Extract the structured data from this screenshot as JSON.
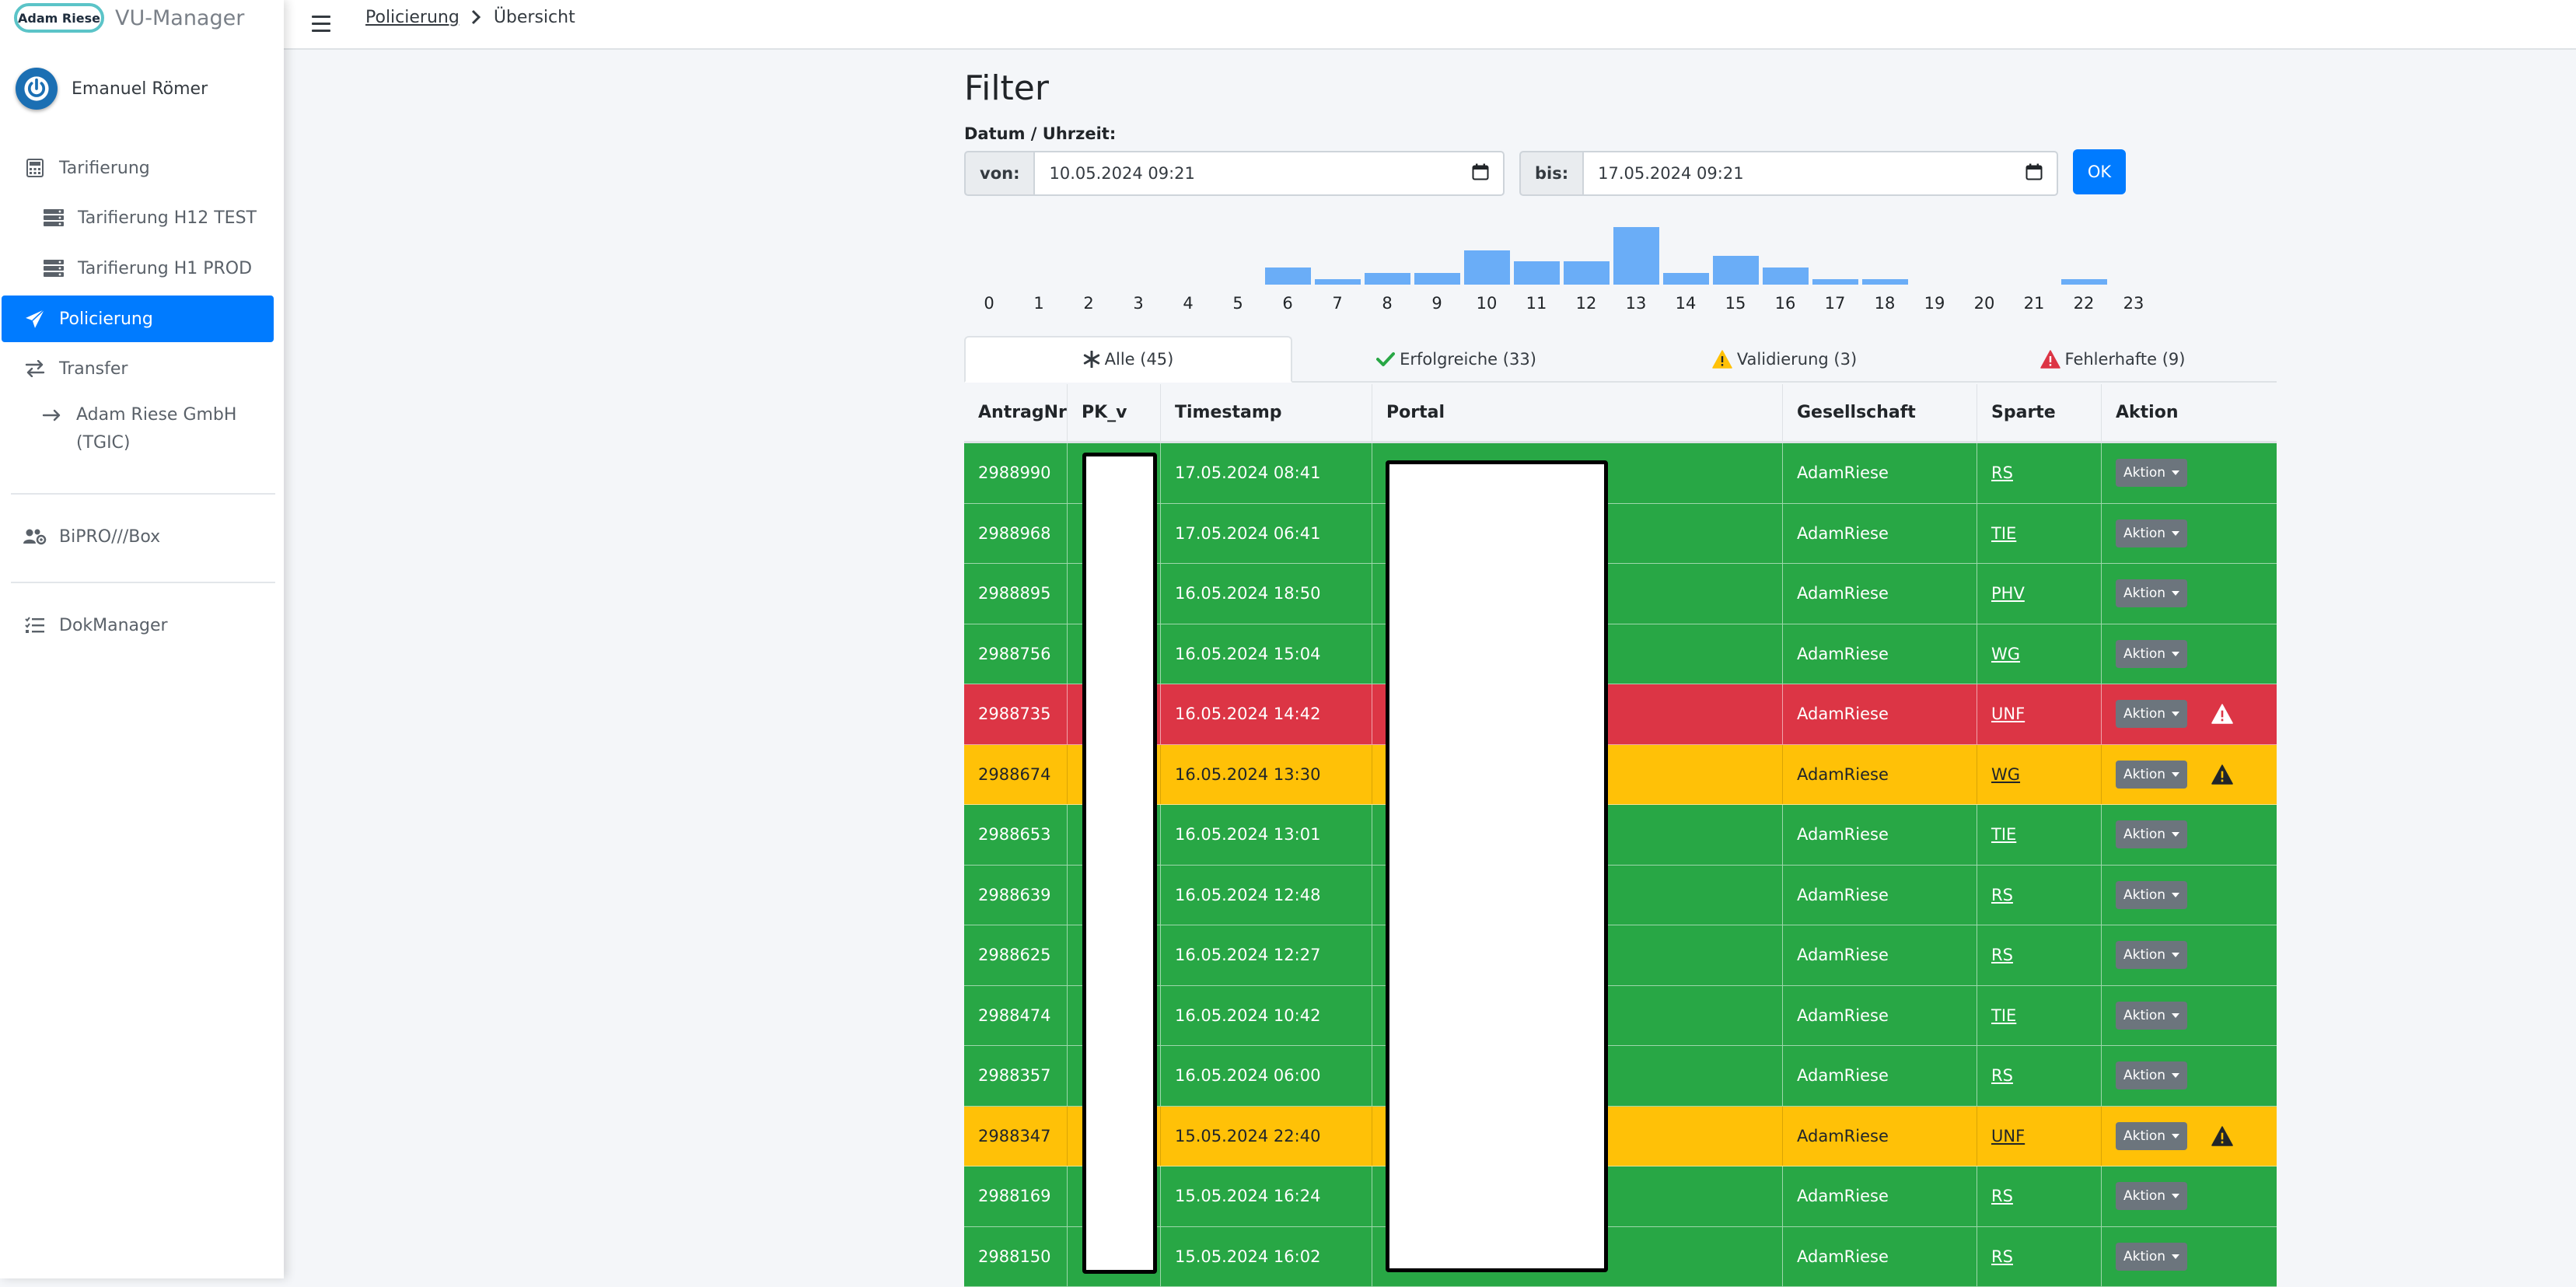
{
  "brand": {
    "logo_text": "Adam Riese",
    "app_name": "VU-Manager"
  },
  "user": {
    "name": "Emanuel Römer"
  },
  "sidebar": {
    "items": [
      {
        "label": "Tarifierung",
        "icon": "calculator-icon"
      },
      {
        "label": "Tarifierung H12 TEST",
        "icon": "server-icon"
      },
      {
        "label": "Tarifierung H1 PROD",
        "icon": "server-icon"
      },
      {
        "label": "Policierung",
        "icon": "paper-plane-icon",
        "active": true
      },
      {
        "label": "Transfer",
        "icon": "exchange-icon"
      },
      {
        "label": "Adam Riese GmbH (TGIC)",
        "icon": "arrow-right-icon"
      },
      {
        "label": "BiPRO///Box",
        "icon": "users-cog-icon"
      },
      {
        "label": "DokManager",
        "icon": "tasks-icon"
      }
    ]
  },
  "breadcrumb": {
    "parent": "Policierung",
    "current": "Übersicht"
  },
  "filter": {
    "title": "Filter",
    "datetime_label": "Datum / Uhrzeit:",
    "from_label": "von:",
    "from_value": "10.05.2024 09:21",
    "to_label": "bis:",
    "to_value": "17.05.2024 09:21",
    "ok_label": "OK"
  },
  "histogram": {
    "hours": [
      "0",
      "1",
      "2",
      "3",
      "4",
      "5",
      "6",
      "7",
      "8",
      "9",
      "10",
      "11",
      "12",
      "13",
      "14",
      "15",
      "16",
      "17",
      "18",
      "19",
      "20",
      "21",
      "22",
      "23"
    ],
    "counts": [
      0,
      0,
      0,
      0,
      0,
      0,
      3,
      1,
      2,
      2,
      6,
      4,
      4,
      10,
      2,
      5,
      3,
      1,
      1,
      0,
      0,
      0,
      1,
      0
    ],
    "bar_color": "#6aadf7"
  },
  "tabs": [
    {
      "label": "Alle (45)",
      "icon": "asterisk-icon",
      "active": true
    },
    {
      "label": "Erfolgreiche (33)",
      "icon": "check-icon",
      "color": "#28a745"
    },
    {
      "label": "Validierung (3)",
      "icon": "warning-icon",
      "color": "#ffc107"
    },
    {
      "label": "Fehlerhafte (9)",
      "icon": "warning-icon",
      "color": "#dc3545"
    }
  ],
  "table": {
    "columns": [
      "AntragNr",
      "PK_v",
      "Timestamp",
      "Portal",
      "Gesellschaft",
      "Sparte",
      "Aktion"
    ],
    "action_label": "Aktion",
    "rows": [
      {
        "antrag": "2988990",
        "ts": "17.05.2024 08:41",
        "ges": "AdamRiese",
        "sparte": "RS",
        "status": "green"
      },
      {
        "antrag": "2988968",
        "ts": "17.05.2024 06:41",
        "ges": "AdamRiese",
        "sparte": "TIE",
        "status": "green"
      },
      {
        "antrag": "2988895",
        "ts": "16.05.2024 18:50",
        "ges": "AdamRiese",
        "sparte": "PHV",
        "status": "green"
      },
      {
        "antrag": "2988756",
        "ts": "16.05.2024 15:04",
        "ges": "AdamRiese",
        "sparte": "WG",
        "status": "green"
      },
      {
        "antrag": "2988735",
        "ts": "16.05.2024 14:42",
        "ges": "AdamRiese",
        "sparte": "UNF",
        "status": "red"
      },
      {
        "antrag": "2988674",
        "ts": "16.05.2024 13:30",
        "ges": "AdamRiese",
        "sparte": "WG",
        "status": "yellow"
      },
      {
        "antrag": "2988653",
        "ts": "16.05.2024 13:01",
        "ges": "AdamRiese",
        "sparte": "TIE",
        "status": "green"
      },
      {
        "antrag": "2988639",
        "ts": "16.05.2024 12:48",
        "ges": "AdamRiese",
        "sparte": "RS",
        "status": "green"
      },
      {
        "antrag": "2988625",
        "ts": "16.05.2024 12:27",
        "ges": "AdamRiese",
        "sparte": "RS",
        "status": "green"
      },
      {
        "antrag": "2988474",
        "ts": "16.05.2024 10:42",
        "ges": "AdamRiese",
        "sparte": "TIE",
        "status": "green"
      },
      {
        "antrag": "2988357",
        "ts": "16.05.2024 06:00",
        "ges": "AdamRiese",
        "sparte": "RS",
        "status": "green"
      },
      {
        "antrag": "2988347",
        "ts": "15.05.2024 22:40",
        "ges": "AdamRiese",
        "sparte": "UNF",
        "status": "yellow"
      },
      {
        "antrag": "2988169",
        "ts": "15.05.2024 16:24",
        "ges": "AdamRiese",
        "sparte": "RS",
        "status": "green"
      },
      {
        "antrag": "2988150",
        "ts": "15.05.2024 16:02",
        "ges": "AdamRiese",
        "sparte": "RS",
        "status": "green"
      }
    ]
  },
  "colors": {
    "primary": "#007bff",
    "success": "#28a745",
    "danger": "#dc3545",
    "warning": "#ffc107"
  }
}
